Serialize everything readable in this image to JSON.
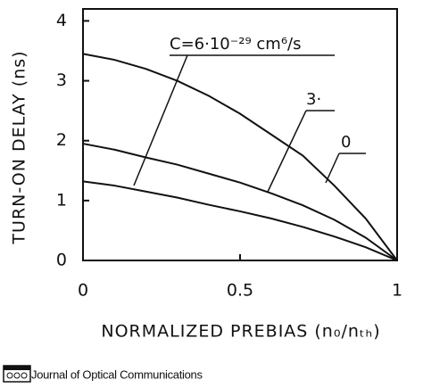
{
  "chart_data": {
    "type": "line",
    "ylabel": "TURN-ON DELAY (ns)",
    "xlabel": "NORMALIZED PREBIAS (n₀/nₜₕ)",
    "source": "Journal of Optical Communications",
    "x": [
      0,
      0.1,
      0.2,
      0.3,
      0.4,
      0.5,
      0.6,
      0.7,
      0.8,
      0.9,
      1
    ],
    "series": [
      {
        "name": "C=6·10⁻²⁹ cm⁶/s",
        "color": "#111111",
        "values": [
          1.32,
          1.25,
          1.15,
          1.05,
          0.93,
          0.82,
          0.7,
          0.56,
          0.4,
          0.22,
          0
        ]
      },
      {
        "name": "3·",
        "color": "#111111",
        "values": [
          1.95,
          1.85,
          1.72,
          1.6,
          1.45,
          1.3,
          1.12,
          0.92,
          0.68,
          0.38,
          0
        ]
      },
      {
        "name": "0",
        "color": "#111111",
        "values": [
          3.45,
          3.35,
          3.2,
          3.0,
          2.75,
          2.45,
          2.1,
          1.75,
          1.25,
          0.7,
          0
        ]
      }
    ],
    "xlim": [
      0,
      1
    ],
    "xticks": [
      0,
      0.5,
      1
    ],
    "ylim": [
      0,
      4.2
    ],
    "yticks": [
      0,
      1,
      2,
      3,
      4
    ],
    "grid": false
  }
}
